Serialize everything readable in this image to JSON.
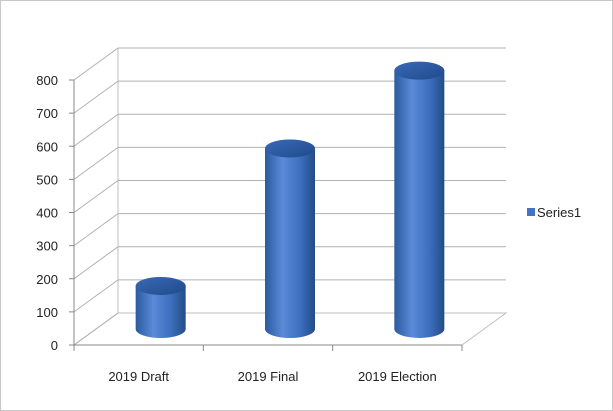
{
  "chart_data": {
    "type": "bar",
    "style": "3d-cylinder",
    "categories": [
      "2019 Draft",
      "2019 Final",
      "2019 Election"
    ],
    "series": [
      {
        "name": "Series1",
        "values": [
          130,
          545,
          780
        ],
        "color": "#4472c4"
      }
    ],
    "yticks": [
      "0",
      "100",
      "200",
      "300",
      "400",
      "500",
      "600",
      "700",
      "800"
    ],
    "ylim": [
      0,
      800
    ],
    "grid": true,
    "legend": "right"
  }
}
